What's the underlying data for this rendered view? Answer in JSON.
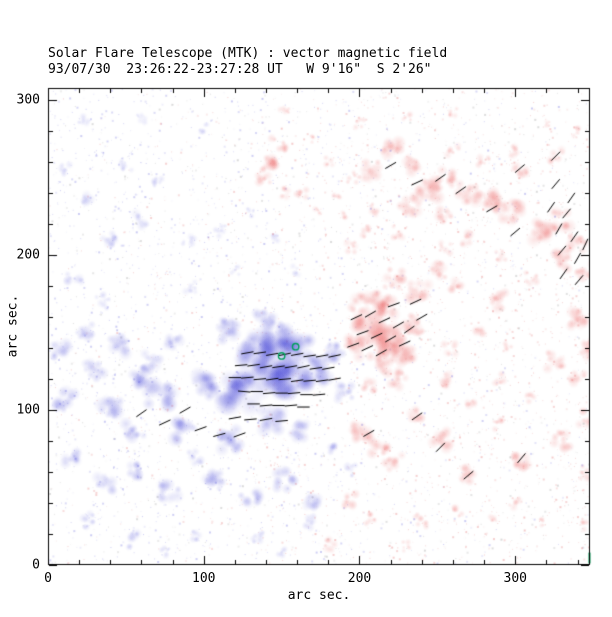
{
  "chart_data": {
    "type": "heatmap",
    "title": "Solar Flare Telescope (MTK) : vector magnetic field",
    "subtitle": "93/07/30  23:26:22-23:27:28 UT   W 9'16\"  S 2'26\"",
    "xlabel": "arc sec.",
    "ylabel": "arc sec.",
    "xlim": [
      0,
      348
    ],
    "ylim": [
      0,
      308
    ],
    "xticks": [
      0,
      100,
      200,
      300
    ],
    "yticks": [
      0,
      100,
      200,
      300
    ],
    "minor_tick_step": 20,
    "grid": false,
    "colors": {
      "positive_polarity": "#e03c3c",
      "negative_polarity": "#4646d2",
      "vectors": "#000000",
      "markers": "#00a05a",
      "axis": "#000000",
      "background": "#ffffff"
    },
    "noise": {
      "seed": 7,
      "count": 4500
    },
    "negative_blobs": [
      [
        150,
        133,
        16,
        0.95
      ],
      [
        162,
        139,
        10,
        0.9
      ],
      [
        133,
        141,
        12,
        0.85
      ],
      [
        120,
        113,
        14,
        0.95
      ],
      [
        101,
        116,
        10,
        0.8
      ],
      [
        140,
        120,
        14,
        0.9
      ],
      [
        158,
        118,
        12,
        0.85
      ],
      [
        172,
        125,
        10,
        0.8
      ],
      [
        183,
        138,
        8,
        0.65
      ],
      [
        117,
        152,
        9,
        0.7
      ],
      [
        139,
        158,
        8,
        0.6
      ],
      [
        150,
        150,
        10,
        0.7
      ],
      [
        190,
        112,
        7,
        0.5
      ],
      [
        72,
        110,
        10,
        0.75
      ],
      [
        56,
        120,
        8,
        0.6
      ],
      [
        40,
        100,
        9,
        0.7
      ],
      [
        11,
        106,
        8,
        0.75
      ],
      [
        30,
        126,
        8,
        0.6
      ],
      [
        8,
        139,
        7,
        0.6
      ],
      [
        24,
        152,
        7,
        0.5
      ],
      [
        46,
        142,
        8,
        0.55
      ],
      [
        66,
        132,
        8,
        0.6
      ],
      [
        82,
        145,
        7,
        0.5
      ],
      [
        15,
        70,
        7,
        0.45
      ],
      [
        56,
        87,
        8,
        0.6
      ],
      [
        88,
        87,
        9,
        0.7
      ],
      [
        117,
        81,
        9,
        0.75
      ],
      [
        143,
        94,
        9,
        0.7
      ],
      [
        162,
        87,
        8,
        0.6
      ],
      [
        95,
        70,
        6,
        0.4
      ],
      [
        56,
        61,
        7,
        0.55
      ],
      [
        37,
        52,
        7,
        0.5
      ],
      [
        78,
        48,
        8,
        0.6
      ],
      [
        107,
        55,
        8,
        0.65
      ],
      [
        130,
        42,
        8,
        0.6
      ],
      [
        152,
        55,
        8,
        0.6
      ],
      [
        168,
        42,
        7,
        0.5
      ],
      [
        185,
        75,
        5,
        0.4
      ],
      [
        194,
        61,
        5,
        0.35
      ],
      [
        27,
        29,
        6,
        0.4
      ],
      [
        53,
        16,
        6,
        0.45
      ],
      [
        95,
        20,
        5,
        0.35
      ],
      [
        135,
        18,
        5,
        0.4
      ],
      [
        168,
        28,
        5,
        0.4
      ],
      [
        40,
        210,
        7,
        0.35
      ],
      [
        59,
        223,
        6,
        0.3
      ],
      [
        27,
        235,
        6,
        0.3
      ],
      [
        17,
        184,
        6,
        0.3
      ],
      [
        72,
        248,
        5,
        0.25
      ],
      [
        50,
        258,
        5,
        0.25
      ],
      [
        90,
        210,
        5,
        0.25
      ],
      [
        111,
        216,
        5,
        0.25
      ],
      [
        130,
        228,
        4,
        0.2
      ],
      [
        23,
        286,
        5,
        0.25
      ],
      [
        60,
        288,
        4,
        0.2
      ],
      [
        100,
        282,
        4,
        0.2
      ],
      [
        10,
        255,
        5,
        0.25
      ],
      [
        35,
        170,
        6,
        0.3
      ],
      [
        92,
        180,
        5,
        0.25
      ],
      [
        120,
        190,
        4,
        0.2
      ],
      [
        145,
        210,
        4,
        0.2
      ],
      [
        160,
        190,
        4,
        0.15
      ],
      [
        75,
        8,
        4,
        0.3
      ],
      [
        150,
        8,
        4,
        0.3
      ]
    ],
    "positive_blobs": [
      [
        207,
        152,
        12,
        0.9
      ],
      [
        220,
        145,
        10,
        0.85
      ],
      [
        228,
        136,
        9,
        0.8
      ],
      [
        215,
        165,
        9,
        0.7
      ],
      [
        200,
        170,
        8,
        0.6
      ],
      [
        196,
        140,
        8,
        0.7
      ],
      [
        235,
        155,
        8,
        0.6
      ],
      [
        213,
        130,
        8,
        0.7
      ],
      [
        225,
        120,
        7,
        0.5
      ],
      [
        205,
        115,
        6,
        0.4
      ],
      [
        213,
        171,
        8,
        0.6
      ],
      [
        222,
        185,
        8,
        0.6
      ],
      [
        238,
        178,
        8,
        0.55
      ],
      [
        250,
        190,
        7,
        0.5
      ],
      [
        262,
        180,
        6,
        0.45
      ],
      [
        245,
        242,
        9,
        0.7
      ],
      [
        232,
        232,
        8,
        0.6
      ],
      [
        220,
        268,
        8,
        0.65
      ],
      [
        208,
        255,
        7,
        0.5
      ],
      [
        235,
        258,
        7,
        0.5
      ],
      [
        255,
        250,
        7,
        0.5
      ],
      [
        270,
        240,
        8,
        0.6
      ],
      [
        284,
        235,
        9,
        0.65
      ],
      [
        298,
        228,
        8,
        0.6
      ],
      [
        316,
        216,
        9,
        0.7
      ],
      [
        330,
        222,
        8,
        0.6
      ],
      [
        329,
        197,
        8,
        0.6
      ],
      [
        340,
        208,
        7,
        0.6
      ],
      [
        345,
        190,
        7,
        0.55
      ],
      [
        290,
        171,
        7,
        0.45
      ],
      [
        303,
        255,
        6,
        0.45
      ],
      [
        326,
        264,
        6,
        0.5
      ],
      [
        300,
        268,
        5,
        0.4
      ],
      [
        280,
        262,
        5,
        0.4
      ],
      [
        260,
        268,
        5,
        0.4
      ],
      [
        255,
        225,
        6,
        0.4
      ],
      [
        270,
        210,
        6,
        0.4
      ],
      [
        255,
        205,
        5,
        0.35
      ],
      [
        290,
        200,
        5,
        0.4
      ],
      [
        310,
        185,
        5,
        0.4
      ],
      [
        339,
        158,
        8,
        0.65
      ],
      [
        345,
        140,
        7,
        0.6
      ],
      [
        326,
        132,
        7,
        0.55
      ],
      [
        340,
        120,
        6,
        0.45
      ],
      [
        345,
        95,
        6,
        0.5
      ],
      [
        330,
        81,
        7,
        0.55
      ],
      [
        345,
        60,
        6,
        0.45
      ],
      [
        143,
        261,
        8,
        0.7
      ],
      [
        148,
        272,
        6,
        0.5
      ],
      [
        138,
        250,
        6,
        0.45
      ],
      [
        152,
        241,
        5,
        0.35
      ],
      [
        163,
        240,
        5,
        0.35
      ],
      [
        174,
        229,
        4,
        0.3
      ],
      [
        186,
        238,
        4,
        0.3
      ],
      [
        196,
        250,
        5,
        0.35
      ],
      [
        181,
        260,
        4,
        0.3
      ],
      [
        200,
        285,
        4,
        0.3
      ],
      [
        230,
        290,
        4,
        0.3
      ],
      [
        260,
        292,
        4,
        0.3
      ],
      [
        152,
        292,
        4,
        0.3
      ],
      [
        195,
        205,
        5,
        0.35
      ],
      [
        206,
        215,
        5,
        0.35
      ],
      [
        190,
        225,
        4,
        0.3
      ],
      [
        211,
        230,
        5,
        0.35
      ],
      [
        225,
        215,
        5,
        0.4
      ],
      [
        200,
        87,
        8,
        0.6
      ],
      [
        213,
        75,
        7,
        0.55
      ],
      [
        222,
        66,
        7,
        0.5
      ],
      [
        236,
        97,
        6,
        0.45
      ],
      [
        252,
        81,
        8,
        0.6
      ],
      [
        271,
        58,
        7,
        0.55
      ],
      [
        303,
        68,
        7,
        0.55
      ],
      [
        194,
        42,
        6,
        0.5
      ],
      [
        206,
        30,
        5,
        0.4
      ],
      [
        239,
        29,
        6,
        0.45
      ],
      [
        262,
        35,
        5,
        0.4
      ],
      [
        285,
        30,
        4,
        0.3
      ],
      [
        181,
        13,
        5,
        0.4
      ],
      [
        230,
        12,
        4,
        0.3
      ],
      [
        300,
        40,
        5,
        0.35
      ],
      [
        316,
        28,
        4,
        0.3
      ],
      [
        345,
        25,
        4,
        0.3
      ],
      [
        255,
        120,
        6,
        0.4
      ],
      [
        270,
        105,
        5,
        0.35
      ],
      [
        290,
        120,
        5,
        0.4
      ],
      [
        310,
        108,
        4,
        0.3
      ],
      [
        290,
        90,
        5,
        0.35
      ],
      [
        258,
        140,
        5,
        0.35
      ],
      [
        278,
        150,
        5,
        0.35
      ],
      [
        295,
        140,
        4,
        0.3
      ],
      [
        340,
        280,
        4,
        0.3
      ],
      [
        320,
        285,
        3,
        0.25
      ],
      [
        170,
        275,
        3,
        0.2
      ]
    ],
    "vectors": {
      "length": 8,
      "items": [
        [
          128,
          137,
          10
        ],
        [
          136,
          137,
          8
        ],
        [
          144,
          136,
          10
        ],
        [
          152,
          136,
          12
        ],
        [
          160,
          136,
          10
        ],
        [
          168,
          135,
          8
        ],
        [
          176,
          135,
          10
        ],
        [
          184,
          135,
          12
        ],
        [
          124,
          129,
          5
        ],
        [
          132,
          129,
          8
        ],
        [
          140,
          128,
          10
        ],
        [
          148,
          128,
          8
        ],
        [
          156,
          128,
          10
        ],
        [
          164,
          128,
          12
        ],
        [
          172,
          127,
          8
        ],
        [
          180,
          127,
          10
        ],
        [
          120,
          121,
          0
        ],
        [
          128,
          121,
          5
        ],
        [
          136,
          120,
          5
        ],
        [
          144,
          120,
          8
        ],
        [
          152,
          120,
          5
        ],
        [
          160,
          119,
          8
        ],
        [
          168,
          119,
          5
        ],
        [
          176,
          119,
          8
        ],
        [
          184,
          120,
          10
        ],
        [
          126,
          112,
          -5
        ],
        [
          134,
          112,
          0
        ],
        [
          142,
          111,
          5
        ],
        [
          150,
          111,
          0
        ],
        [
          158,
          111,
          5
        ],
        [
          166,
          110,
          0
        ],
        [
          174,
          110,
          5
        ],
        [
          132,
          104,
          0
        ],
        [
          140,
          103,
          5
        ],
        [
          148,
          103,
          0
        ],
        [
          156,
          103,
          5
        ],
        [
          164,
          102,
          0
        ],
        [
          120,
          95,
          10
        ],
        [
          130,
          94,
          5
        ],
        [
          140,
          94,
          10
        ],
        [
          150,
          93,
          5
        ],
        [
          88,
          100,
          30
        ],
        [
          75,
          92,
          25
        ],
        [
          98,
          88,
          20
        ],
        [
          60,
          98,
          35
        ],
        [
          110,
          84,
          15
        ],
        [
          123,
          84,
          20
        ],
        [
          198,
          160,
          25
        ],
        [
          207,
          162,
          30
        ],
        [
          216,
          158,
          25
        ],
        [
          225,
          155,
          30
        ],
        [
          202,
          150,
          20
        ],
        [
          211,
          148,
          25
        ],
        [
          220,
          146,
          30
        ],
        [
          229,
          143,
          25
        ],
        [
          196,
          142,
          20
        ],
        [
          205,
          140,
          25
        ],
        [
          214,
          137,
          30
        ],
        [
          232,
          152,
          35
        ],
        [
          240,
          160,
          30
        ],
        [
          236,
          170,
          25
        ],
        [
          222,
          168,
          20
        ],
        [
          323,
          231,
          55
        ],
        [
          333,
          227,
          50
        ],
        [
          328,
          217,
          60
        ],
        [
          338,
          212,
          55
        ],
        [
          330,
          203,
          50
        ],
        [
          340,
          198,
          60
        ],
        [
          331,
          188,
          55
        ],
        [
          341,
          184,
          50
        ],
        [
          345,
          207,
          65
        ],
        [
          336,
          237,
          55
        ],
        [
          326,
          246,
          50
        ],
        [
          265,
          242,
          35
        ],
        [
          303,
          256,
          40
        ],
        [
          326,
          264,
          45
        ],
        [
          285,
          230,
          30
        ],
        [
          300,
          215,
          40
        ],
        [
          220,
          258,
          30
        ],
        [
          237,
          247,
          25
        ],
        [
          252,
          250,
          35
        ],
        [
          252,
          76,
          45
        ],
        [
          270,
          58,
          40
        ],
        [
          237,
          96,
          35
        ],
        [
          304,
          69,
          50
        ],
        [
          206,
          85,
          30
        ]
      ]
    },
    "markers": [
      {
        "x": 150,
        "y": 135
      },
      {
        "x": 159,
        "y": 141
      }
    ],
    "edge_tick": {
      "y1": 1,
      "y2": 8
    }
  }
}
